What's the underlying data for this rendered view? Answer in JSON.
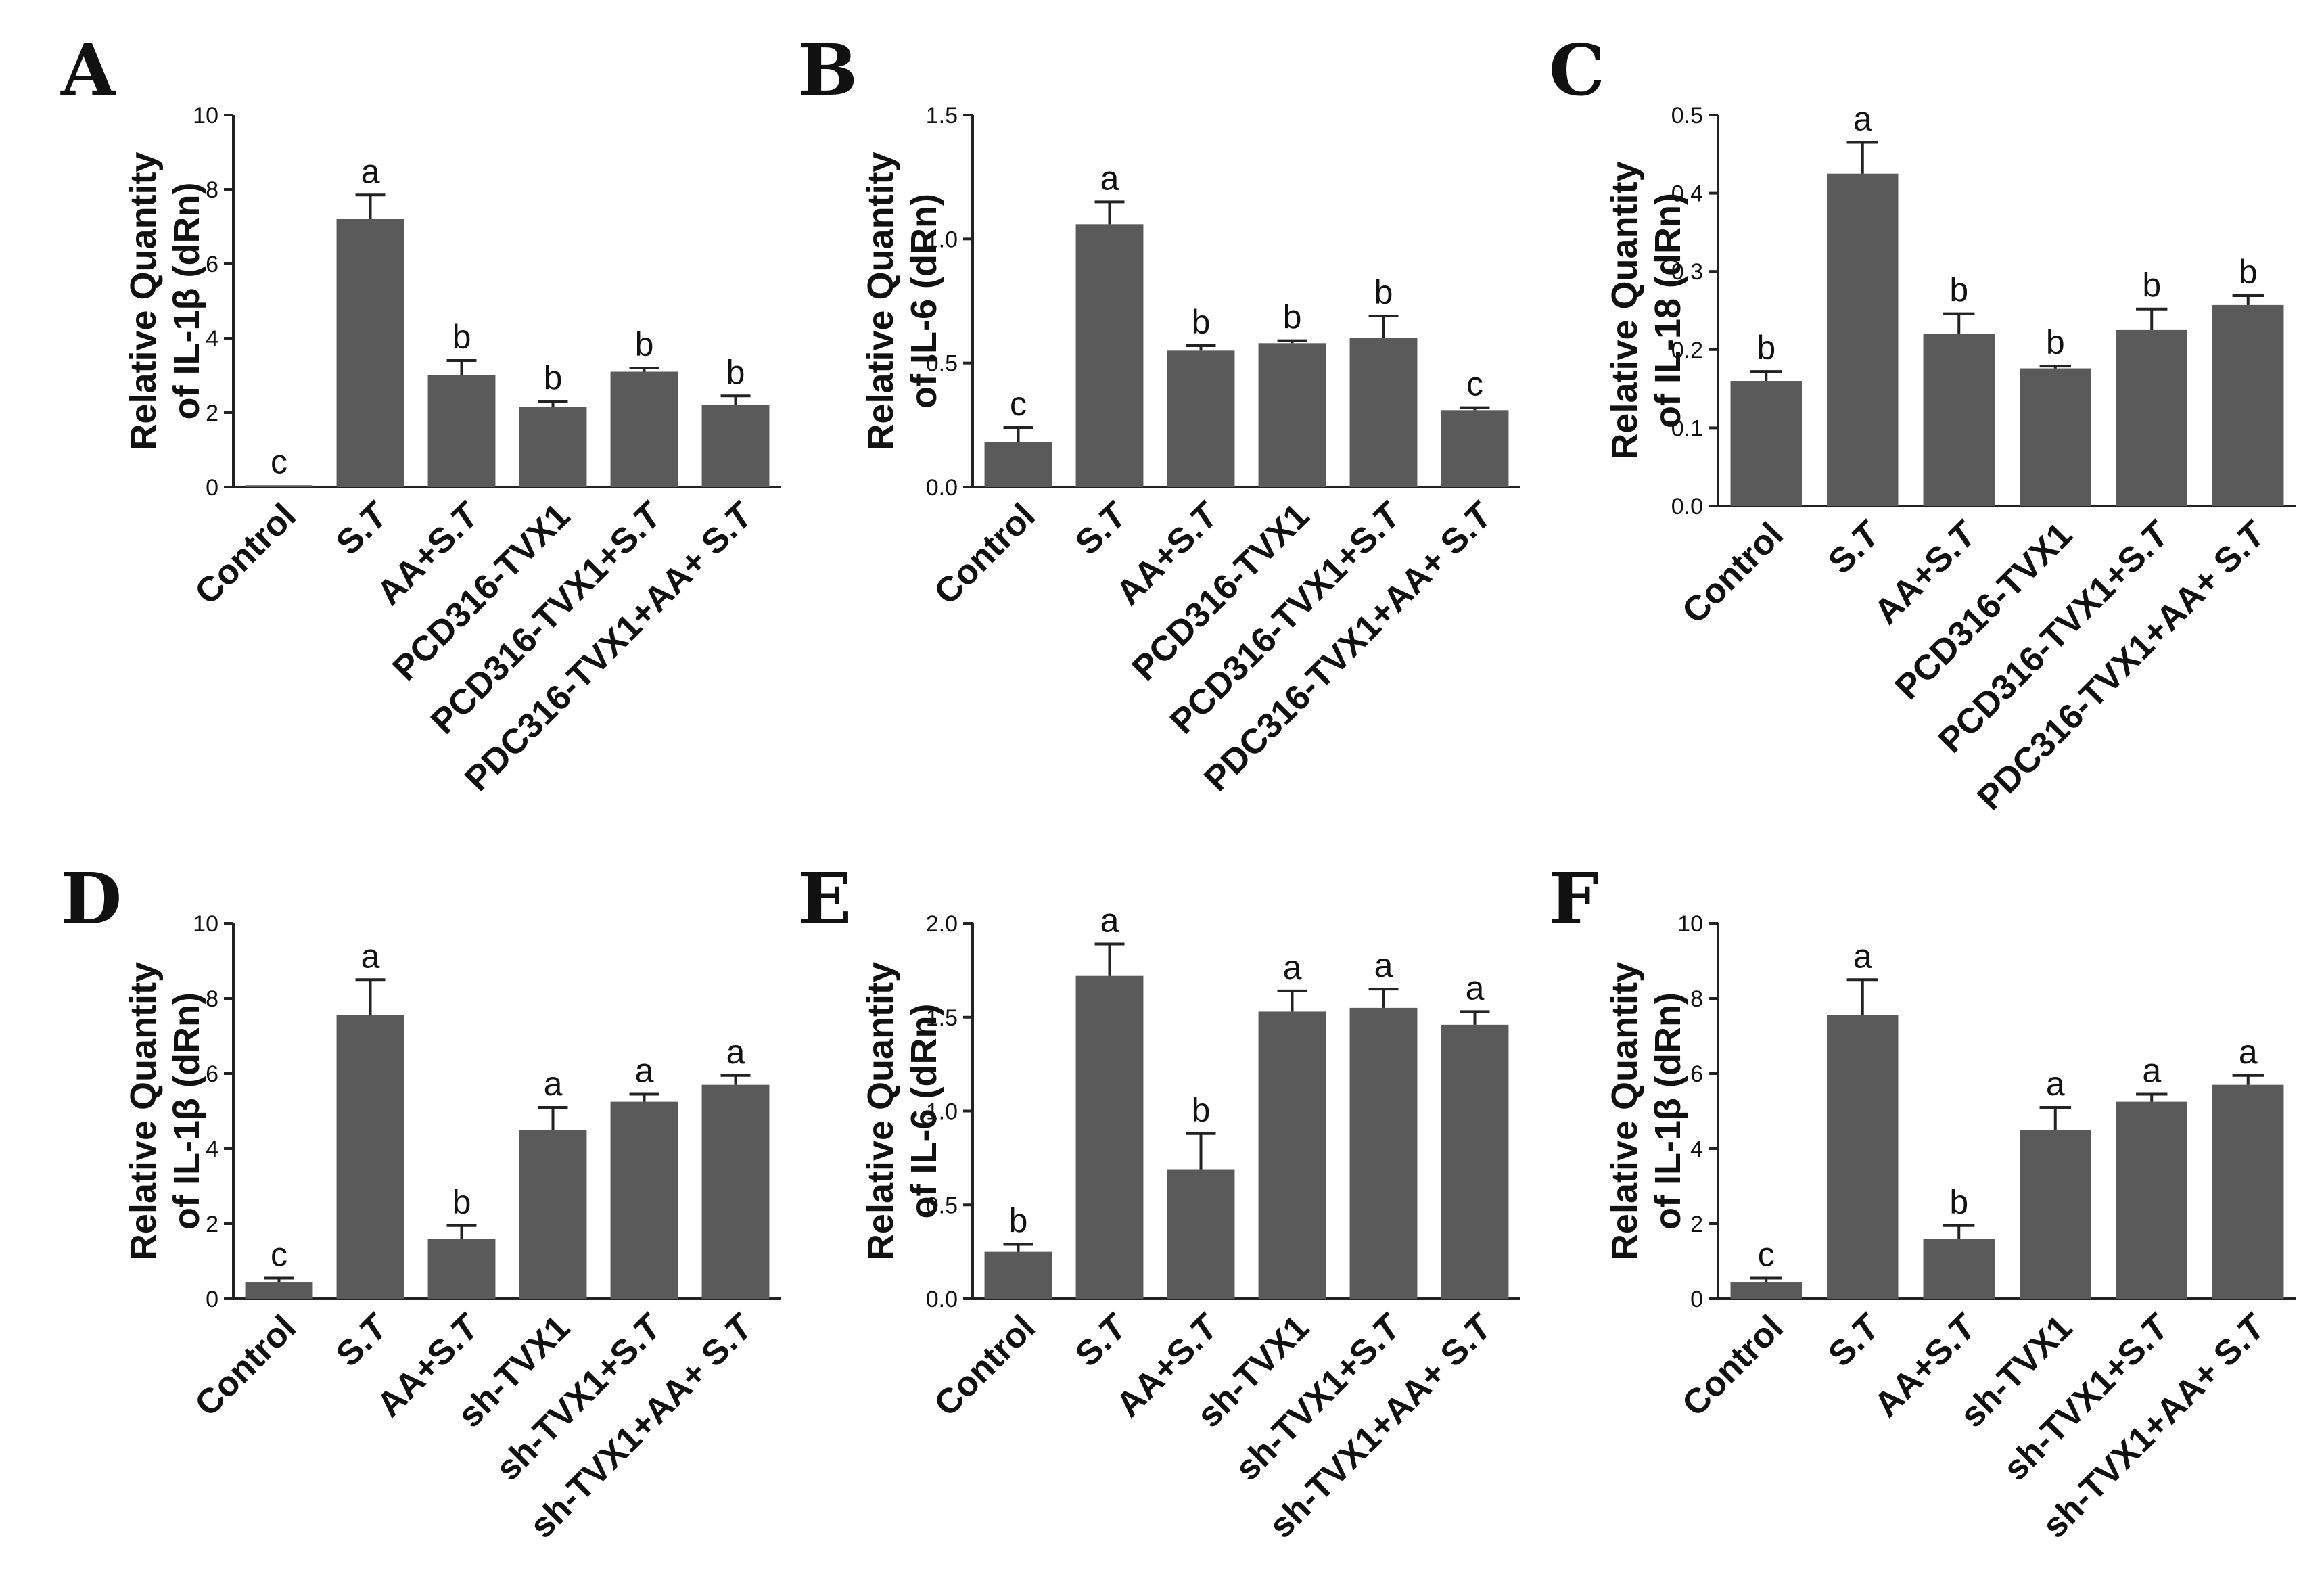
{
  "chart_data": [
    {
      "type": "bar",
      "panel": "A",
      "ylabel_line1": "Relative Quantity",
      "ylabel_line2": "of IL-1β (dRn)",
      "ylim": [
        0,
        10
      ],
      "yticks": [
        "0",
        "2",
        "4",
        "6",
        "8",
        "10"
      ],
      "categories": [
        {
          "plain": "Control",
          "italic": ""
        },
        {
          "plain": "S.",
          "italic": "T"
        },
        {
          "plain": "AA+S.",
          "italic": "T"
        },
        {
          "plain": "PCD316-TVX1",
          "italic": ""
        },
        {
          "plain": "PCD316-TVX1+S.",
          "italic": "T"
        },
        {
          "plain": "PDC316-TVX1+AA+ S.",
          "italic": "T"
        }
      ],
      "values": [
        0.05,
        7.2,
        3.0,
        2.15,
        3.1,
        2.2
      ],
      "errors": [
        0.0,
        0.65,
        0.4,
        0.15,
        0.1,
        0.25
      ],
      "letters": [
        "c",
        "a",
        "b",
        "b",
        "b",
        "b"
      ]
    },
    {
      "type": "bar",
      "panel": "B",
      "ylabel_line1": "Relative Quantity",
      "ylabel_line2": "of IL-6 (dRn)",
      "ylim": [
        0,
        1.5
      ],
      "yticks": [
        "0.0",
        "0.5",
        "1.0",
        "1.5"
      ],
      "categories": [
        {
          "plain": "Control",
          "italic": ""
        },
        {
          "plain": "S.",
          "italic": "T"
        },
        {
          "plain": "AA+S.",
          "italic": "T"
        },
        {
          "plain": "PCD316-TVX1",
          "italic": ""
        },
        {
          "plain": "PCD316-TVX1+S.",
          "italic": "T"
        },
        {
          "plain": "PDC316-TVX1+AA+ S.",
          "italic": "T"
        }
      ],
      "values": [
        0.18,
        1.06,
        0.55,
        0.58,
        0.6,
        0.31
      ],
      "errors": [
        0.06,
        0.09,
        0.02,
        0.01,
        0.09,
        0.01
      ],
      "letters": [
        "c",
        "a",
        "b",
        "b",
        "b",
        "c"
      ]
    },
    {
      "type": "bar",
      "panel": "C",
      "ylabel_line1": "Relative Quantity",
      "ylabel_line2": "of IL-18 (dRn)",
      "ylim": [
        0,
        0.5
      ],
      "yticks": [
        "0.0",
        "0.1",
        "0.2",
        "0.3",
        "0.4",
        "0.5"
      ],
      "categories": [
        {
          "plain": "Control",
          "italic": ""
        },
        {
          "plain": "S.",
          "italic": "T"
        },
        {
          "plain": "AA+S.",
          "italic": "T"
        },
        {
          "plain": "PCD316-TVX1",
          "italic": ""
        },
        {
          "plain": "PCD316-TVX1+S.",
          "italic": "T"
        },
        {
          "plain": "PDC316-TVX1+AA+ S.",
          "italic": "T"
        }
      ],
      "values": [
        0.16,
        0.425,
        0.22,
        0.176,
        0.225,
        0.257
      ],
      "errors": [
        0.012,
        0.04,
        0.026,
        0.003,
        0.027,
        0.012
      ],
      "letters": [
        "b",
        "a",
        "b",
        "b",
        "b",
        "b"
      ]
    },
    {
      "type": "bar",
      "panel": "D",
      "ylabel_line1": "Relative Quantity",
      "ylabel_line2": "of IL-1β (dRn)",
      "ylim": [
        0,
        10
      ],
      "yticks": [
        "0",
        "2",
        "4",
        "6",
        "8",
        "10"
      ],
      "categories": [
        {
          "plain": "Control",
          "italic": ""
        },
        {
          "plain": "S.",
          "italic": "T"
        },
        {
          "plain": "AA+S.",
          "italic": "T"
        },
        {
          "plain": "sh-TVX1",
          "italic": ""
        },
        {
          "plain": "sh-TVX1+S.",
          "italic": "T"
        },
        {
          "plain": "sh-TVX1+AA+ S.",
          "italic": "T"
        }
      ],
      "values": [
        0.45,
        7.55,
        1.6,
        4.5,
        5.25,
        5.7
      ],
      "errors": [
        0.1,
        0.95,
        0.35,
        0.6,
        0.2,
        0.25
      ],
      "letters": [
        "c",
        "a",
        "b",
        "a",
        "a",
        "a"
      ]
    },
    {
      "type": "bar",
      "panel": "E",
      "ylabel_line1": "Relative Quantity",
      "ylabel_line2": "of IL-6 (dRn)",
      "ylim": [
        0,
        2.0
      ],
      "yticks": [
        "0.0",
        "0.5",
        "1.0",
        "1.5",
        "2.0"
      ],
      "categories": [
        {
          "plain": "Control",
          "italic": ""
        },
        {
          "plain": "S.",
          "italic": "T"
        },
        {
          "plain": "AA+S.",
          "italic": "T"
        },
        {
          "plain": "sh-TVX1",
          "italic": ""
        },
        {
          "plain": "sh-TVX1+S.",
          "italic": "T"
        },
        {
          "plain": "sh-TVX1+AA+ S.",
          "italic": "T"
        }
      ],
      "values": [
        0.25,
        1.72,
        0.69,
        1.53,
        1.55,
        1.46
      ],
      "errors": [
        0.04,
        0.17,
        0.19,
        0.11,
        0.1,
        0.07
      ],
      "letters": [
        "b",
        "a",
        "b",
        "a",
        "a",
        "a"
      ]
    },
    {
      "type": "bar",
      "panel": "F",
      "ylabel_line1": "Relative Quantity",
      "ylabel_line2": "of IL-1β (dRn)",
      "ylim": [
        0,
        10
      ],
      "yticks": [
        "0",
        "2",
        "4",
        "6",
        "8",
        "10"
      ],
      "categories": [
        {
          "plain": "Control",
          "italic": ""
        },
        {
          "plain": "S.",
          "italic": "T"
        },
        {
          "plain": "AA+S.",
          "italic": "T"
        },
        {
          "plain": "sh-TVX1",
          "italic": ""
        },
        {
          "plain": "sh-TVX1+S.",
          "italic": "T"
        },
        {
          "plain": "sh-TVX1+AA+ S.",
          "italic": "T"
        }
      ],
      "values": [
        0.45,
        7.55,
        1.6,
        4.5,
        5.25,
        5.7
      ],
      "errors": [
        0.1,
        0.95,
        0.35,
        0.6,
        0.2,
        0.25
      ],
      "letters": [
        "c",
        "a",
        "b",
        "a",
        "a",
        "a"
      ]
    }
  ],
  "colors": {
    "bar": "#5a5a5a",
    "axis": "#222222",
    "text": "#111111"
  }
}
